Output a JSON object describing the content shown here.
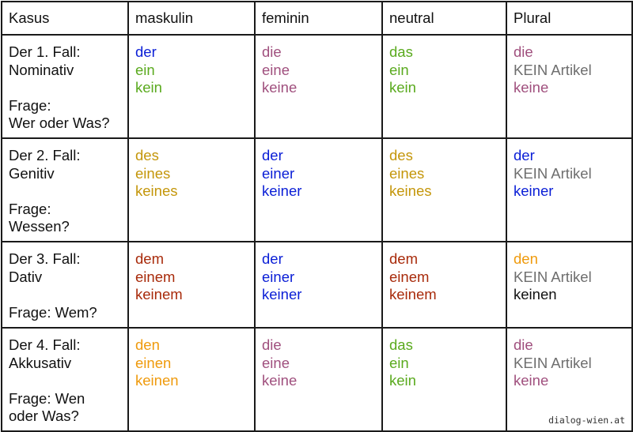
{
  "table": {
    "headers": [
      "Kasus",
      "maskulin",
      "feminin",
      "neutral",
      "Plural"
    ],
    "rows": [
      {
        "kasus": {
          "fall": "Der 1. Fall:",
          "name": "Nominativ",
          "frage": [
            "Frage:",
            "Wer oder Was?"
          ]
        },
        "cells": [
          [
            {
              "text": "der",
              "color": "blue"
            },
            {
              "text": "ein",
              "color": "green"
            },
            {
              "text": "kein",
              "color": "green"
            }
          ],
          [
            {
              "text": "die",
              "color": "purple"
            },
            {
              "text": "eine",
              "color": "purple"
            },
            {
              "text": "keine",
              "color": "purple"
            }
          ],
          [
            {
              "text": "das",
              "color": "green"
            },
            {
              "text": "ein",
              "color": "green"
            },
            {
              "text": "kein",
              "color": "green"
            }
          ],
          [
            {
              "text": "die",
              "color": "purple"
            },
            {
              "text": "KEIN Artikel",
              "color": "gray"
            },
            {
              "text": "keine",
              "color": "purple"
            }
          ]
        ]
      },
      {
        "kasus": {
          "fall": "Der 2. Fall:",
          "name": "Genitiv",
          "frage": [
            "Frage:",
            "Wessen?"
          ]
        },
        "cells": [
          [
            {
              "text": "des",
              "color": "gold"
            },
            {
              "text": "eines",
              "color": "gold"
            },
            {
              "text": "keines",
              "color": "gold"
            }
          ],
          [
            {
              "text": "der",
              "color": "blue"
            },
            {
              "text": "einer",
              "color": "blue"
            },
            {
              "text": "keiner",
              "color": "blue"
            }
          ],
          [
            {
              "text": "des",
              "color": "gold"
            },
            {
              "text": "eines",
              "color": "gold"
            },
            {
              "text": "keines",
              "color": "gold"
            }
          ],
          [
            {
              "text": "der",
              "color": "blue"
            },
            {
              "text": "KEIN Artikel",
              "color": "gray"
            },
            {
              "text": "keiner",
              "color": "blue"
            }
          ]
        ]
      },
      {
        "kasus": {
          "fall": "Der 3. Fall:",
          "name": "Dativ",
          "frage": [
            "Frage: Wem?"
          ]
        },
        "cells": [
          [
            {
              "text": "dem",
              "color": "red"
            },
            {
              "text": "einem",
              "color": "red"
            },
            {
              "text": "keinem",
              "color": "red"
            }
          ],
          [
            {
              "text": "der",
              "color": "blue"
            },
            {
              "text": "einer",
              "color": "blue"
            },
            {
              "text": "keiner",
              "color": "blue"
            }
          ],
          [
            {
              "text": "dem",
              "color": "red"
            },
            {
              "text": "einem",
              "color": "red"
            },
            {
              "text": "keinem",
              "color": "red"
            }
          ],
          [
            {
              "text": "den",
              "color": "orange"
            },
            {
              "text": "KEIN Artikel",
              "color": "gray"
            },
            {
              "text": "keinen",
              "color": "black"
            }
          ]
        ]
      },
      {
        "kasus": {
          "fall": "Der 4. Fall:",
          "name": "Akkusativ",
          "frage": [
            "Frage: Wen",
            "oder Was?"
          ]
        },
        "cells": [
          [
            {
              "text": "den",
              "color": "orange"
            },
            {
              "text": "einen",
              "color": "orange"
            },
            {
              "text": "keinen",
              "color": "orange"
            }
          ],
          [
            {
              "text": "die",
              "color": "purple"
            },
            {
              "text": "eine",
              "color": "purple"
            },
            {
              "text": "keine",
              "color": "purple"
            }
          ],
          [
            {
              "text": "das",
              "color": "green"
            },
            {
              "text": "ein",
              "color": "green"
            },
            {
              "text": "kein",
              "color": "green"
            }
          ],
          [
            {
              "text": "die",
              "color": "purple"
            },
            {
              "text": "KEIN Artikel",
              "color": "gray"
            },
            {
              "text": "keine",
              "color": "purple"
            }
          ]
        ]
      }
    ]
  },
  "colors": {
    "black": "#111111",
    "blue": "#0a1ed6",
    "green": "#5aaa1e",
    "purple": "#a0507e",
    "gray": "#6e6e6e",
    "gold": "#c4960a",
    "red": "#a82a0a",
    "orange": "#ef9a0c"
  },
  "watermark": "dialog-wien.at"
}
